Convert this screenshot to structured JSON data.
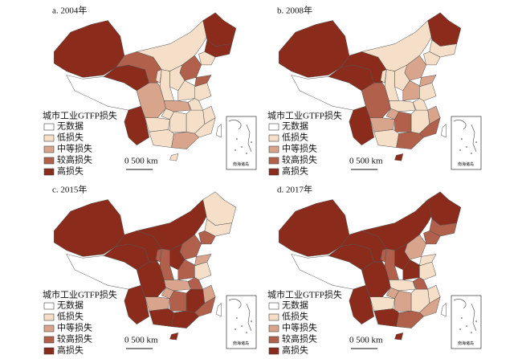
{
  "panels": [
    {
      "title": "a. 2004年",
      "legend": {
        "title": "城市工业GTFP损失",
        "items": [
          "无数据",
          "低损失",
          "中等损失",
          "较高损失",
          "高损失"
        ]
      },
      "scale_label": "0  500 km",
      "inset_label": "南海诸岛"
    },
    {
      "title": "b. 2008年",
      "legend": {
        "title": "城市工业GTFP损失",
        "items": [
          "无数据",
          "低损失",
          "中等损失",
          "较高损失",
          "高损失"
        ]
      },
      "scale_label": "0  500 km",
      "inset_label": "南海诸岛"
    },
    {
      "title": "c. 2015年",
      "legend": {
        "title": "城市工业GTFP损失",
        "items": [
          "无数据",
          "低损失",
          "中等损失",
          "较高损失",
          "高损失"
        ]
      },
      "scale_label": "0  500 km",
      "inset_label": "南海诸岛"
    },
    {
      "title": "d. 2017年",
      "legend": {
        "title": "城市工业GTFP损失",
        "items": [
          "无数据",
          "低损失",
          "中等损失",
          "较高损失",
          "高损失"
        ]
      },
      "scale_label": "0  500 km",
      "inset_label": "南海诸岛"
    }
  ]
}
